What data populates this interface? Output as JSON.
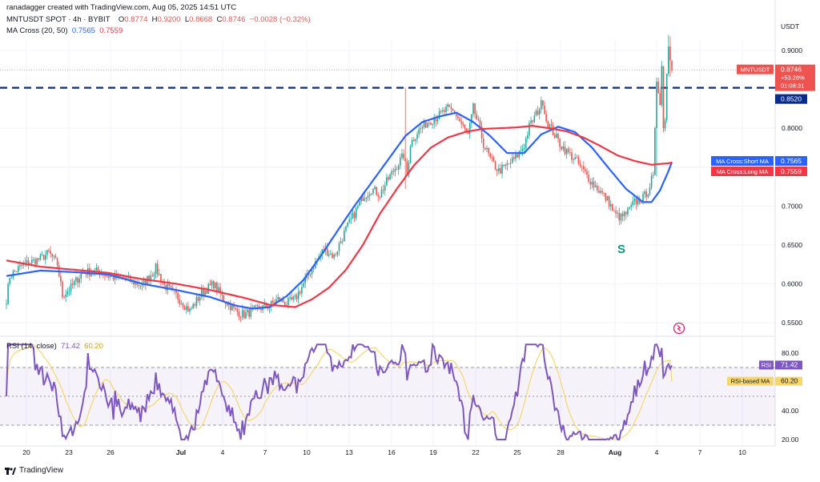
{
  "header": {
    "creator": "ranadagger created with TradingView.com, Aug 05, 2025 14:51 UTC",
    "symbol": "MNTUSDT SPOT · 4h · BYBIT",
    "ohlc_labels": {
      "o": "O",
      "h": "H",
      "l": "L",
      "c": "C"
    },
    "open": "0.8774",
    "high": "0.9200",
    "low": "0.8668",
    "close": "0.8746",
    "change": "−0.0028 (−0.32%)",
    "ma_label": "MA Cross (20, 50)",
    "ma_short": "0.7565",
    "ma_long": "0.7559",
    "rsi_label": "RSI (14, close)",
    "rsi_value": "71.42",
    "rsi_ma_value": "60.20"
  },
  "footer": {
    "brand": "TradingView"
  },
  "colors": {
    "up": "#26a69a",
    "down": "#ef5350",
    "short_ma": "#2962ff",
    "long_ma": "#f23645",
    "rsi": "#7e57c2",
    "rsi_ma": "#f5d76e",
    "price_tag": "#ef5350",
    "level": "#0a2a8c",
    "annotation": "#089981"
  },
  "chart_data": [
    {
      "type": "candlestick",
      "title": "MNTUSDT SPOT · 4h · BYBIT",
      "ylabel": "USDT",
      "ylim": [
        0.53,
        0.935
      ],
      "x_ticks": [
        "20",
        "23",
        "26",
        "Jul",
        "4",
        "7",
        "10",
        "13",
        "16",
        "19",
        "22",
        "25",
        "28",
        "Aug",
        "4",
        "7",
        "10"
      ],
      "y_ticks": [
        "0.5500",
        "0.6000",
        "0.6500",
        "0.7000",
        "0.8000",
        "0.9000"
      ],
      "last_price": {
        "label": "MNTUSDT",
        "value": "0.8746",
        "change": "+53.28%",
        "countdown": "01:08:31"
      },
      "horizontal_level": {
        "value": 0.852,
        "label": "0.8520",
        "style": "dashed"
      },
      "series": [
        {
          "name": "MA Cross:Short MA",
          "value_label": "0.7565",
          "anchors": [
            [
              0,
              0.61
            ],
            [
              20,
              0.617
            ],
            [
              40,
              0.615
            ],
            [
              60,
              0.612
            ],
            [
              80,
              0.6
            ],
            [
              100,
              0.592
            ],
            [
              120,
              0.583
            ],
            [
              135,
              0.572
            ],
            [
              145,
              0.568
            ],
            [
              155,
              0.57
            ],
            [
              165,
              0.584
            ],
            [
              175,
              0.605
            ],
            [
              185,
              0.635
            ],
            [
              195,
              0.668
            ],
            [
              205,
              0.7
            ],
            [
              215,
              0.73
            ],
            [
              225,
              0.76
            ],
            [
              235,
              0.79
            ],
            [
              245,
              0.808
            ],
            [
              255,
              0.815
            ],
            [
              265,
              0.82
            ],
            [
              275,
              0.808
            ],
            [
              285,
              0.79
            ],
            [
              295,
              0.768
            ],
            [
              305,
              0.768
            ],
            [
              315,
              0.792
            ],
            [
              325,
              0.802
            ],
            [
              335,
              0.795
            ],
            [
              345,
              0.775
            ],
            [
              355,
              0.748
            ],
            [
              365,
              0.722
            ],
            [
              375,
              0.705
            ],
            [
              380,
              0.705
            ],
            [
              385,
              0.72
            ],
            [
              390,
              0.745
            ],
            [
              392,
              0.7565
            ]
          ]
        },
        {
          "name": "MA Cross:Long MA",
          "value_label": "0.7559",
          "anchors": [
            [
              0,
              0.63
            ],
            [
              20,
              0.622
            ],
            [
              40,
              0.618
            ],
            [
              60,
              0.614
            ],
            [
              80,
              0.606
            ],
            [
              100,
              0.6
            ],
            [
              120,
              0.592
            ],
            [
              140,
              0.582
            ],
            [
              155,
              0.573
            ],
            [
              170,
              0.57
            ],
            [
              180,
              0.58
            ],
            [
              190,
              0.595
            ],
            [
              200,
              0.618
            ],
            [
              210,
              0.65
            ],
            [
              220,
              0.69
            ],
            [
              230,
              0.722
            ],
            [
              240,
              0.752
            ],
            [
              250,
              0.775
            ],
            [
              260,
              0.788
            ],
            [
              270,
              0.795
            ],
            [
              280,
              0.799
            ],
            [
              290,
              0.8
            ],
            [
              300,
              0.801
            ],
            [
              310,
              0.803
            ],
            [
              320,
              0.8
            ],
            [
              330,
              0.796
            ],
            [
              340,
              0.788
            ],
            [
              350,
              0.777
            ],
            [
              360,
              0.765
            ],
            [
              370,
              0.758
            ],
            [
              380,
              0.753
            ],
            [
              390,
              0.755
            ],
            [
              392,
              0.7559
            ]
          ]
        }
      ],
      "annotations": [
        {
          "text": "S"
        }
      ]
    },
    {
      "type": "line",
      "title": "RSI (14, close)",
      "ylim": [
        15,
        88
      ],
      "y_ticks": [
        "20.00",
        "40.00",
        "60.00",
        "80.00"
      ],
      "bands": [
        30,
        70
      ],
      "series": [
        {
          "name": "RSI",
          "value_label": "71.42"
        },
        {
          "name": "RSI-based MA",
          "value_label": "60.20"
        }
      ]
    }
  ]
}
